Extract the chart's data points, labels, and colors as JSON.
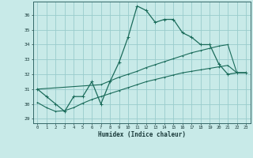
{
  "title": "",
  "xlabel": "Humidex (Indice chaleur)",
  "bg_color": "#c8eae8",
  "grid_color": "#99cccc",
  "line_color": "#1a6b5a",
  "xlim": [
    -0.5,
    23.5
  ],
  "ylim": [
    28.7,
    36.9
  ],
  "xticks": [
    0,
    1,
    2,
    3,
    4,
    5,
    6,
    7,
    8,
    9,
    10,
    11,
    12,
    13,
    14,
    15,
    16,
    17,
    18,
    19,
    20,
    21,
    22,
    23
  ],
  "yticks": [
    29,
    30,
    31,
    32,
    33,
    34,
    35,
    36
  ],
  "line1_x": [
    0,
    1,
    2,
    3,
    4,
    5,
    6,
    7,
    8,
    9,
    10,
    11,
    12,
    13,
    14,
    15,
    16,
    17,
    18,
    19,
    20,
    21,
    22,
    23
  ],
  "line1_y": [
    31.0,
    30.5,
    30.0,
    29.5,
    30.5,
    30.5,
    31.5,
    30.0,
    31.5,
    32.8,
    34.5,
    36.6,
    36.3,
    35.5,
    35.7,
    35.7,
    34.8,
    34.5,
    34.0,
    34.0,
    32.7,
    32.0,
    32.1,
    32.1
  ],
  "line2_x": [
    0,
    7,
    8,
    9,
    10,
    11,
    12,
    13,
    14,
    15,
    16,
    17,
    18,
    19,
    20,
    21,
    22,
    23
  ],
  "line2_y": [
    31.0,
    31.3,
    31.55,
    31.8,
    32.0,
    32.2,
    32.45,
    32.65,
    32.85,
    33.05,
    33.25,
    33.45,
    33.6,
    33.75,
    33.9,
    34.0,
    32.1,
    32.1
  ],
  "line3_x": [
    0,
    1,
    2,
    3,
    4,
    5,
    6,
    7,
    8,
    9,
    10,
    11,
    12,
    13,
    14,
    15,
    16,
    17,
    18,
    19,
    20,
    21,
    22,
    23
  ],
  "line3_y": [
    30.1,
    29.75,
    29.5,
    29.55,
    29.75,
    30.05,
    30.3,
    30.5,
    30.7,
    30.9,
    31.1,
    31.3,
    31.5,
    31.65,
    31.8,
    31.95,
    32.1,
    32.2,
    32.3,
    32.4,
    32.5,
    32.6,
    32.1,
    32.1
  ]
}
